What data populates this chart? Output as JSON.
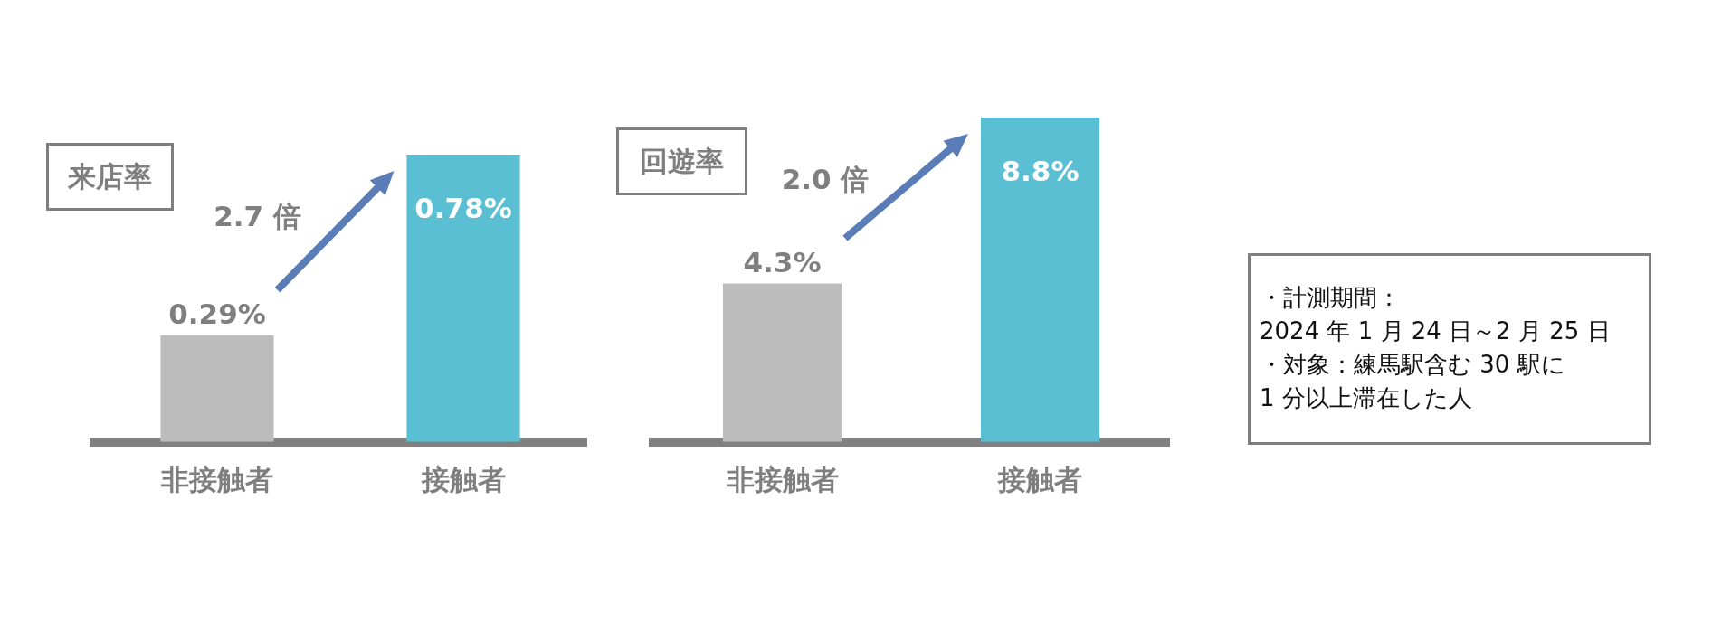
{
  "chart_data": [
    {
      "type": "bar",
      "title": "来店率",
      "categories": [
        "非接触者",
        "接触者"
      ],
      "values": [
        0.29,
        0.78
      ],
      "colors": [
        "#bbbcbb",
        "#5bbfd4"
      ],
      "value_labels": [
        "0.29%",
        "0.78%"
      ],
      "annotations": [
        "2.7 倍"
      ]
    },
    {
      "type": "bar",
      "title": "回遊率",
      "categories": [
        "非接触者",
        "接触者"
      ],
      "values": [
        4.3,
        8.8
      ],
      "colors": [
        "#bbbcbb",
        "#5bbfd4"
      ],
      "value_labels": [
        "4.3%",
        "8.8%"
      ],
      "annotations": [
        "2.0 倍"
      ]
    },
    {
      "type": "other",
      "annotations": [
        "・計測期間：",
        "2024 年 1 月 24 日～2 月 25 日",
        "・対象：練馬駅含む 30 駅に",
        "1 分以上滞在した人"
      ]
    }
  ]
}
